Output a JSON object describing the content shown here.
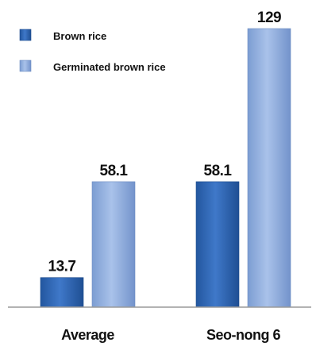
{
  "chart_data": {
    "type": "bar",
    "title": "",
    "xlabel": "",
    "ylabel": "",
    "categories": [
      "Average",
      "Seo-nong 6"
    ],
    "series": [
      {
        "name": "Brown rice",
        "values": [
          13.7,
          58.1
        ],
        "color": "#2e64b4"
      },
      {
        "name": "Germinated brown rice",
        "values": [
          58.1,
          129
        ],
        "color": "#8fadde"
      }
    ],
    "ylim": [
      0,
      135
    ],
    "grid": false,
    "legend_position": "top-left"
  }
}
